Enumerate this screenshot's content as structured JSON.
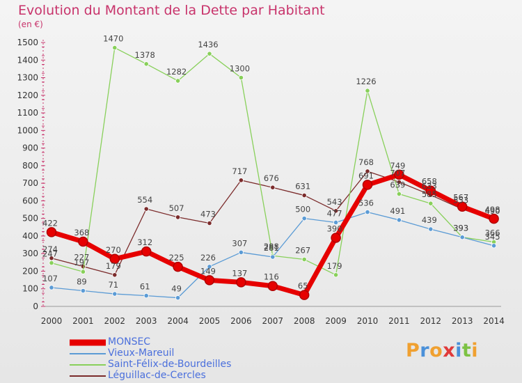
{
  "chart_data": {
    "type": "line",
    "title": "Evolution du Montant de la Dette par Habitant",
    "unit_label": "(en €)",
    "x": [
      "2000",
      "2001",
      "2002",
      "2003",
      "2004",
      "2005",
      "2006",
      "2007",
      "2008",
      "2009",
      "2010",
      "2011",
      "2012",
      "2013",
      "2014"
    ],
    "ylim": [
      0,
      1500
    ],
    "yticks": [
      0,
      100,
      200,
      300,
      400,
      500,
      600,
      700,
      800,
      900,
      1000,
      1100,
      1200,
      1300,
      1400,
      1500
    ],
    "grid": false,
    "legend_position": "bottom-left",
    "series": [
      {
        "name": "MONSEC",
        "color": "#e60000",
        "values": [
          422,
          368,
          270,
          312,
          225,
          149,
          137,
          116,
          65,
          390,
          691,
          749,
          658,
          567,
          498
        ]
      },
      {
        "name": "Vieux-Mareuil",
        "color": "#5b9bd5",
        "values": [
          107,
          89,
          71,
          61,
          49,
          226,
          307,
          281,
          500,
          477,
          536,
          491,
          439,
          393,
          345
        ]
      },
      {
        "name": "Saint-Félix-de-Bourdeilles",
        "color": "#88d05a",
        "values": [
          247,
          197,
          1470,
          1378,
          1282,
          1436,
          1300,
          288,
          267,
          179,
          1226,
          639,
          585,
          393,
          366
        ]
      },
      {
        "name": "Léguillac-de-Cercles",
        "color": "#7b2b2b",
        "values": [
          274,
          227,
          179,
          554,
          507,
          473,
          717,
          676,
          631,
          543,
          768,
          707,
          633,
          553,
          490
        ]
      }
    ]
  },
  "logo": {
    "letters": [
      {
        "ch": "P",
        "color": "#f0a030"
      },
      {
        "ch": "r",
        "color": "#4a90d9"
      },
      {
        "ch": "o",
        "color": "#f0a030"
      },
      {
        "ch": "x",
        "color": "#e03a3a"
      },
      {
        "ch": "i",
        "color": "#4a90d9"
      },
      {
        "ch": "t",
        "color": "#7cc243"
      },
      {
        "ch": "i",
        "color": "#f0a030"
      }
    ]
  }
}
